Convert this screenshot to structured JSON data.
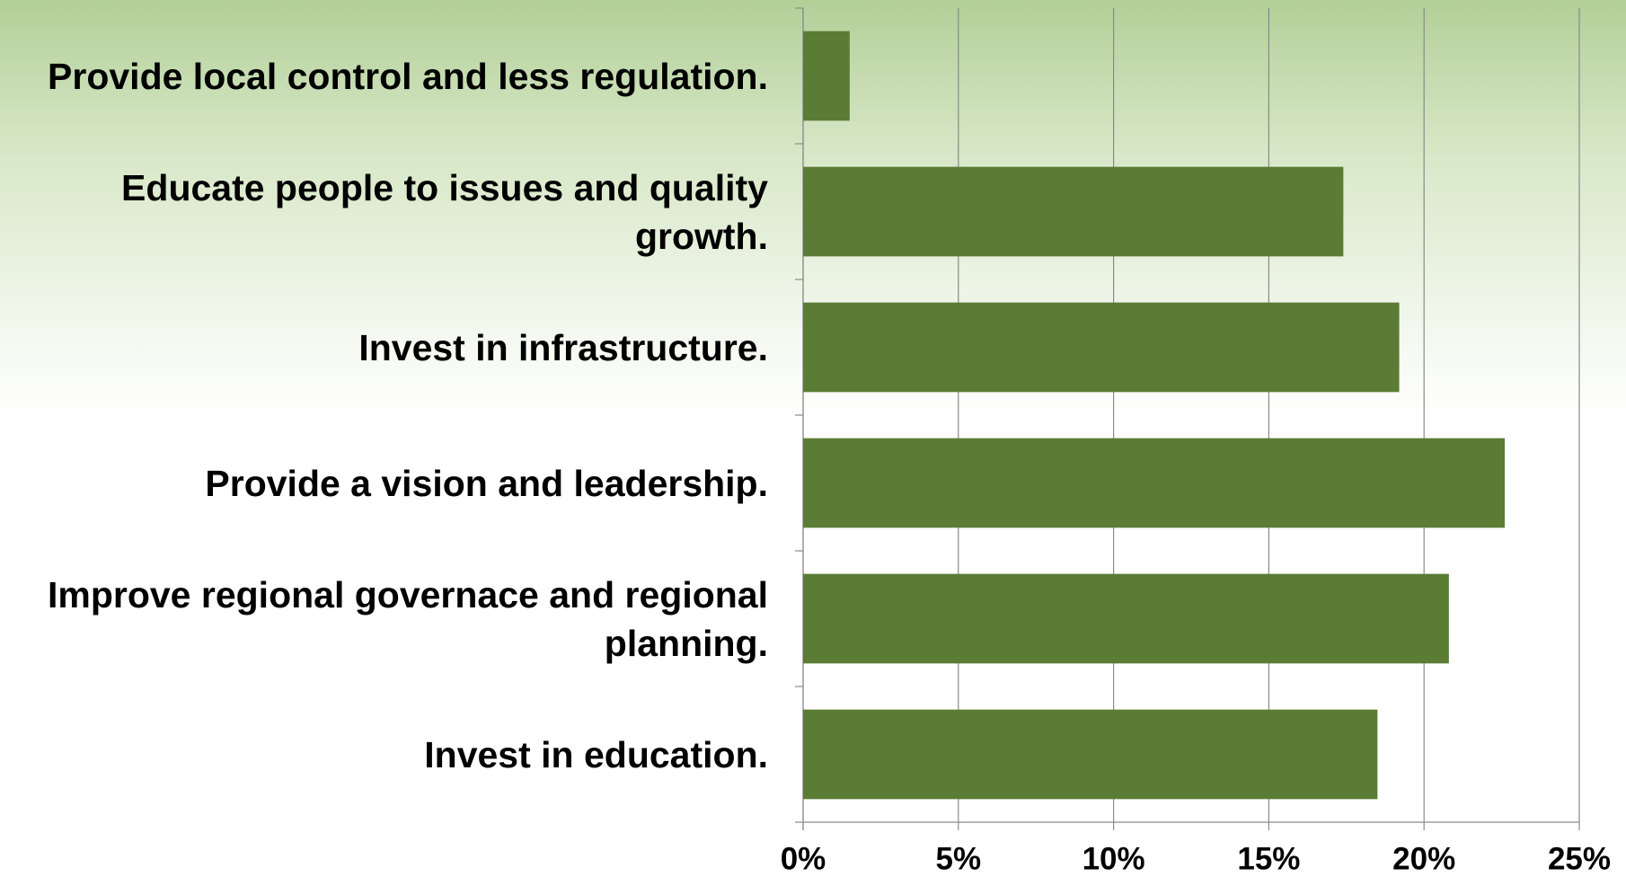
{
  "chart_data": {
    "type": "bar",
    "orientation": "horizontal",
    "categories": [
      "Provide local control and less regulation.",
      "Educate people to issues and quality growth.",
      "Invest in infrastructure.",
      "Provide a vision and leadership.",
      "Improve regional governace and regional planning.",
      "Invest in education."
    ],
    "values": [
      1.5,
      17.4,
      19.2,
      22.6,
      20.8,
      18.5
    ],
    "color": "#5a7c34",
    "xlim": [
      0,
      25
    ],
    "xticks": [
      {
        "value": 0,
        "label": "0%"
      },
      {
        "value": 5,
        "label": "5%"
      },
      {
        "value": 10,
        "label": "10%"
      },
      {
        "value": 15,
        "label": "15%"
      },
      {
        "value": 20,
        "label": "20%"
      },
      {
        "value": 25,
        "label": "25%"
      }
    ],
    "grid": true
  }
}
